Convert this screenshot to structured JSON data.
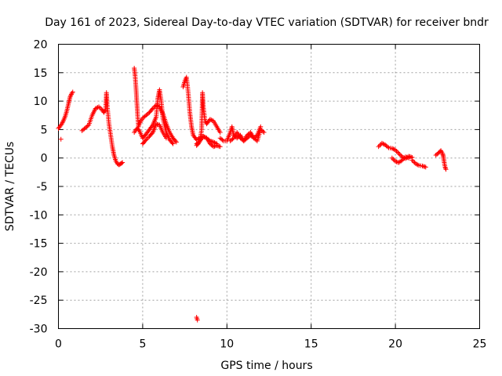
{
  "chart_data": {
    "type": "scatter",
    "title": "Day 161 of 2023, Sidereal Day-to-day VTEC variation (SDTVAR) for receiver bndr",
    "xlabel": "GPS time / hours",
    "ylabel": "SDTVAR / TECUs",
    "xlim": [
      0,
      25
    ],
    "ylim": [
      -30,
      20
    ],
    "xticks": [
      0,
      5,
      10,
      15,
      20,
      25
    ],
    "yticks": [
      -30,
      -25,
      -20,
      -15,
      -10,
      -5,
      0,
      5,
      10,
      15,
      20
    ],
    "grid": true,
    "marker": "+",
    "marker_color": "#ff0000",
    "series": [
      {
        "name": "SDTVAR",
        "segments": [
          {
            "x": [
              0.0,
              0.1,
              0.2,
              0.3,
              0.4,
              0.5,
              0.6,
              0.7,
              0.8,
              0.85
            ],
            "y": [
              5.2,
              5.6,
              6.0,
              6.6,
              7.3,
              8.3,
              9.6,
              10.8,
              11.4,
              11.6
            ]
          },
          {
            "x": [
              0.15
            ],
            "y": [
              3.3
            ]
          },
          {
            "x": [
              1.4,
              1.6,
              1.8,
              2.0,
              2.2,
              2.4,
              2.55,
              2.7,
              2.8,
              2.85,
              2.9,
              3.0,
              3.1,
              3.2,
              3.3,
              3.4,
              3.5,
              3.6,
              3.7,
              3.8
            ],
            "y": [
              4.8,
              5.3,
              5.8,
              7.5,
              8.7,
              9.0,
              8.6,
              8.0,
              8.5,
              11.5,
              9.0,
              6.0,
              4.0,
              2.0,
              0.5,
              -0.5,
              -1.0,
              -1.2,
              -1.0,
              -0.8
            ]
          },
          {
            "x": [
              4.5,
              4.55,
              4.6,
              4.65,
              4.7,
              4.75,
              4.8,
              4.9,
              5.0,
              5.2,
              5.4,
              5.6,
              5.8,
              6.0,
              6.2,
              6.4,
              6.6,
              6.8,
              7.0
            ],
            "y": [
              15.8,
              14.5,
              12.5,
              10.0,
              7.5,
              5.5,
              6.0,
              6.5,
              7.0,
              7.5,
              8.0,
              8.7,
              9.3,
              9.0,
              7.8,
              6.0,
              4.5,
              3.5,
              2.8
            ]
          },
          {
            "x": [
              4.5,
              4.6,
              4.7,
              4.8,
              5.0,
              5.2,
              5.4,
              5.6,
              5.8,
              5.9,
              6.0,
              6.1,
              6.2,
              6.4,
              6.6,
              6.8
            ],
            "y": [
              4.5,
              5.0,
              5.2,
              4.8,
              3.5,
              4.2,
              5.0,
              5.8,
              7.2,
              10.5,
              12.0,
              10.0,
              7.0,
              4.5,
              3.2,
              2.5
            ]
          },
          {
            "x": [
              5.0,
              5.2,
              5.4,
              5.6,
              5.7,
              5.8,
              6.0,
              6.2,
              6.4
            ],
            "y": [
              2.5,
              3.2,
              3.8,
              4.5,
              5.2,
              6.0,
              5.8,
              4.5,
              3.5
            ]
          },
          {
            "x": [
              7.4,
              7.5,
              7.6,
              7.65,
              7.7,
              7.8,
              7.9,
              8.0,
              8.2,
              8.4,
              8.6,
              8.8,
              9.0,
              9.2,
              9.4
            ],
            "y": [
              12.5,
              13.5,
              14.2,
              13.0,
              11.5,
              8.0,
              5.5,
              4.0,
              3.2,
              3.5,
              3.8,
              3.5,
              3.0,
              2.8,
              2.5
            ]
          },
          {
            "x": [
              8.2,
              8.3,
              8.4,
              8.5,
              8.55,
              8.6,
              8.7,
              8.8,
              9.0,
              9.2,
              9.4,
              9.6
            ],
            "y": [
              2.2,
              2.5,
              3.0,
              5.0,
              11.5,
              9.0,
              6.5,
              6.0,
              6.8,
              6.5,
              5.5,
              4.5
            ]
          },
          {
            "x": [
              8.2,
              8.4,
              8.6,
              8.8,
              9.0,
              9.2,
              9.4,
              9.6
            ],
            "y": [
              2.5,
              3.0,
              3.8,
              3.5,
              2.5,
              2.0,
              2.2,
              2.0
            ]
          },
          {
            "x": [
              8.2,
              8.25
            ],
            "y": [
              -28.0,
              -28.5
            ]
          },
          {
            "x": [
              9.6,
              9.8,
              10.0,
              10.2,
              10.3,
              10.4,
              10.6,
              10.8,
              11.0,
              11.2,
              11.4,
              11.6,
              11.8,
              12.0,
              12.2
            ],
            "y": [
              3.5,
              3.0,
              3.0,
              4.5,
              5.5,
              4.0,
              3.5,
              4.0,
              3.0,
              4.0,
              4.5,
              3.5,
              3.0,
              5.0,
              4.5
            ]
          },
          {
            "x": [
              10.2,
              10.4,
              10.6,
              10.8,
              11.0,
              11.2,
              11.4,
              11.6,
              11.8,
              12.0
            ],
            "y": [
              3.0,
              3.5,
              4.5,
              3.5,
              3.0,
              3.5,
              4.0,
              3.5,
              4.0,
              5.5
            ]
          },
          {
            "x": [
              19.0,
              19.2,
              19.4,
              19.6,
              19.8,
              20.0,
              20.2,
              20.4,
              20.6,
              20.8,
              21.0
            ],
            "y": [
              2.0,
              2.6,
              2.3,
              1.8,
              1.7,
              1.4,
              0.8,
              0.2,
              -0.1,
              0.3,
              0.1
            ]
          },
          {
            "x": [
              19.8,
              20.0,
              20.2,
              20.4,
              20.6,
              20.8
            ],
            "y": [
              0.0,
              -0.6,
              -0.8,
              -0.4,
              0.2,
              0.0
            ]
          },
          {
            "x": [
              21.0,
              21.2,
              21.4,
              21.6,
              21.8
            ],
            "y": [
              -0.4,
              -1.0,
              -1.3,
              -1.4,
              -1.6
            ]
          },
          {
            "x": [
              22.4,
              22.6,
              22.7,
              22.8,
              22.85,
              22.9,
              22.95,
              23.0
            ],
            "y": [
              0.5,
              1.0,
              1.3,
              0.8,
              0.2,
              -0.8,
              -1.6,
              -2.0
            ]
          }
        ]
      }
    ]
  }
}
